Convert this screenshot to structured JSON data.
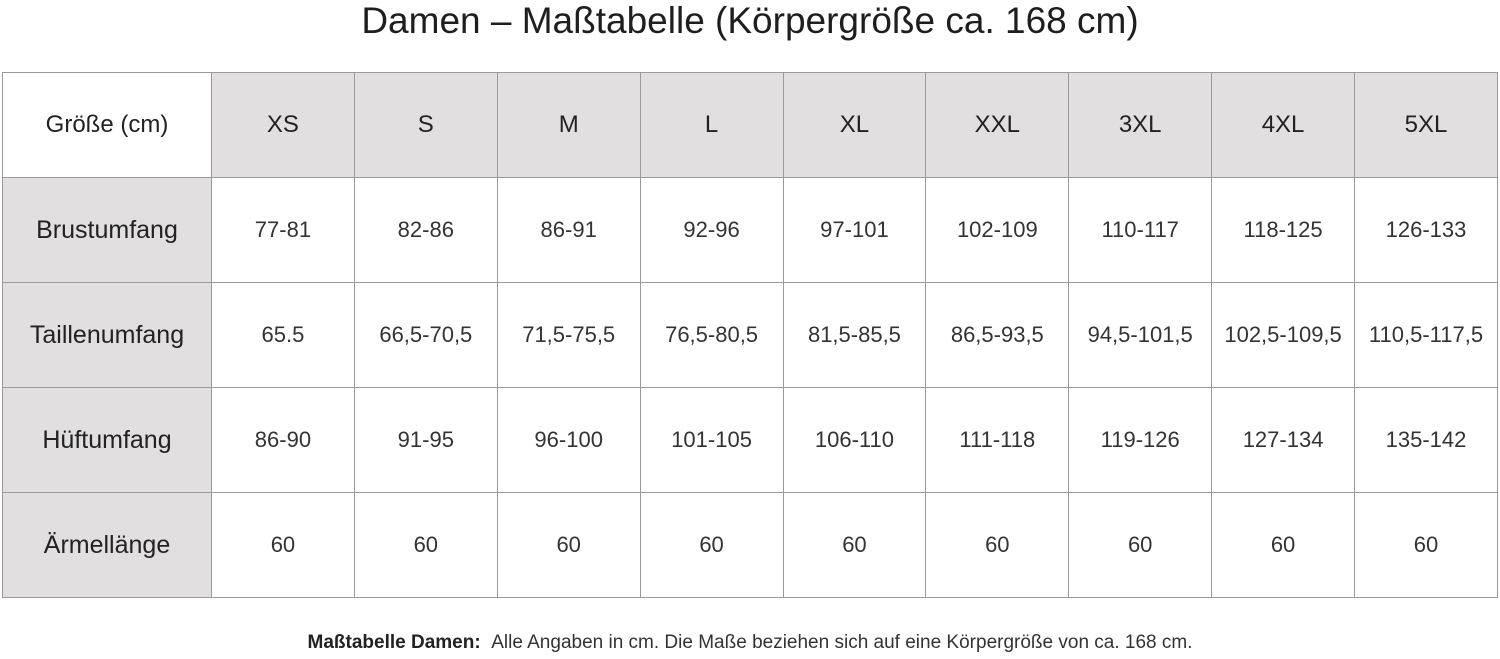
{
  "header": {
    "title": "Damen – Maßtabelle (Körpergröße ca. 168 cm)"
  },
  "table": {
    "corner": "Größe (cm)",
    "columns": [
      "XS",
      "S",
      "M",
      "L",
      "XL",
      "XXL",
      "3XL",
      "4XL",
      "5XL"
    ],
    "rows": [
      {
        "label": "Brustumfang",
        "cells": [
          "77-81",
          "82-86",
          "86-91",
          "92-96",
          "97-101",
          "102-109",
          "110-117",
          "118-125",
          "126-133"
        ]
      },
      {
        "label": "Taillenumfang",
        "cells": [
          "65.5",
          "66,5-70,5",
          "71,5-75,5",
          "76,5-80,5",
          "81,5-85,5",
          "86,5-93,5",
          "94,5-101,5",
          "102,5-109,5",
          "110,5-117,5"
        ]
      },
      {
        "label": "Hüftumfang",
        "cells": [
          "86-90",
          "91-95",
          "96-100",
          "101-105",
          "106-110",
          "111-118",
          "119-126",
          "127-134",
          "135-142"
        ]
      },
      {
        "label": "Ärmellänge",
        "cells": [
          "60",
          "60",
          "60",
          "60",
          "60",
          "60",
          "60",
          "60",
          "60"
        ]
      }
    ]
  },
  "footer": {
    "label": "Maßtabelle Damen:",
    "text": "Alle Angaben in cm. Die Maße beziehen sich auf eine Körpergröße von ca. 168 cm."
  }
}
